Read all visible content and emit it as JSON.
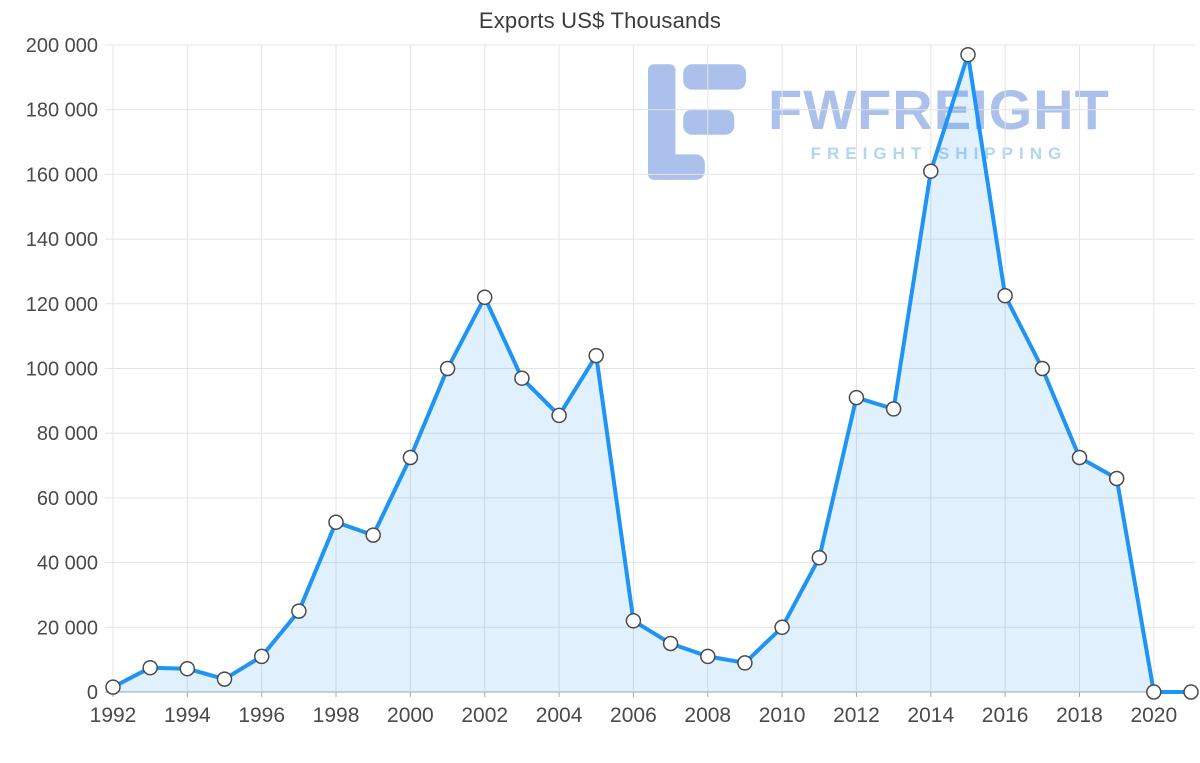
{
  "title": "Exports US$ Thousands",
  "watermark": {
    "brand": "FWFREIGHT",
    "tagline": "FREIGHT SHIPPING",
    "logo_icon": "fwfreight-logo-icon",
    "brand_color": "#a3bbe9",
    "tagline_color": "#a9d2ee"
  },
  "chart_data": {
    "type": "area",
    "title": "Exports US$ Thousands",
    "xlabel": "",
    "ylabel": "",
    "x": [
      1992,
      1993,
      1994,
      1995,
      1996,
      1997,
      1998,
      1999,
      2000,
      2001,
      2002,
      2003,
      2004,
      2005,
      2006,
      2007,
      2008,
      2009,
      2010,
      2011,
      2012,
      2013,
      2014,
      2015,
      2016,
      2017,
      2018,
      2019,
      2020,
      2021
    ],
    "values": [
      1500,
      7500,
      7200,
      4000,
      11000,
      25000,
      52500,
      48500,
      72500,
      100000,
      122000,
      97000,
      85500,
      104000,
      22000,
      15000,
      11000,
      9000,
      20000,
      41500,
      91000,
      87500,
      161000,
      197000,
      122500,
      100000,
      72500,
      66000,
      0,
      0
    ],
    "ylim": [
      0,
      200000
    ],
    "y_tick_step": 20000,
    "x_tick_labels": [
      1992,
      1994,
      1996,
      1998,
      2000,
      2002,
      2004,
      2006,
      2008,
      2010,
      2012,
      2014,
      2016,
      2018,
      2020
    ],
    "grid": true,
    "legend": "none",
    "colors": {
      "line": "#2094f3",
      "area_fill": "rgba(33,148,243,0.14)",
      "marker_fill": "#ffffff",
      "marker_stroke": "#4a4a4a",
      "grid": "#e4e4e4",
      "axis": "#a6a6a6",
      "tick_text": "#4a4a4a"
    }
  }
}
